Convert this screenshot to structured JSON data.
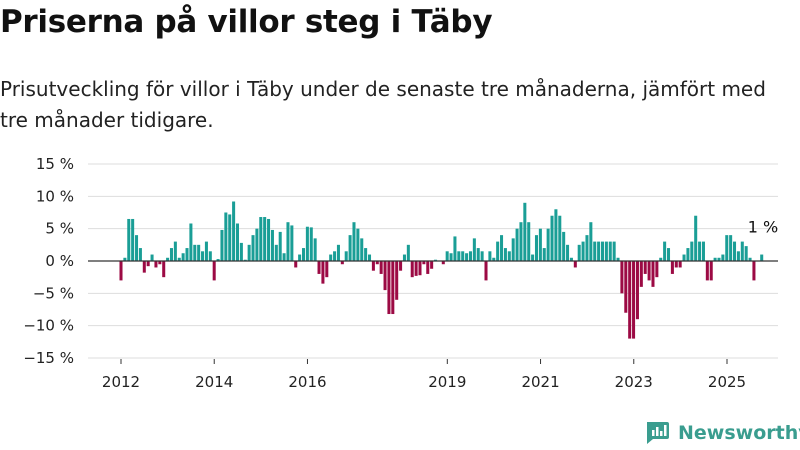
{
  "title": "Priserna på villor steg i Täby",
  "subtitle": "Prisutveckling för villor i Täby under de senaste tre månaderna, jämfört med tre månader tidigare.",
  "brand": "Newsworthy",
  "colors": {
    "positive": "#1a9e96",
    "negative": "#9c0a44",
    "grid": "#dddddd",
    "zero": "#333333",
    "brand": "#3a9d8f"
  },
  "chart_data": {
    "type": "bar",
    "ylabel": "",
    "xlabel": "",
    "ylim": [
      -15,
      15
    ],
    "yticks": [
      15,
      10,
      5,
      0,
      -5,
      -10,
      -15
    ],
    "ytick_labels": [
      "15 %",
      "10 %",
      "5 %",
      "0 %",
      "−5 %",
      "−10 %",
      "−15 %"
    ],
    "xticks": [
      "2012",
      "2014",
      "2016",
      "2019",
      "2021",
      "2023",
      "2025"
    ],
    "xtick_positions": [
      2012.0,
      2014.0,
      2016.0,
      2019.0,
      2021.0,
      2023.0,
      2025.0
    ],
    "x_start": 2012.0,
    "x_step": 0.0833,
    "values": [
      -3,
      0.5,
      6.5,
      6.5,
      4,
      2,
      -1.8,
      -0.8,
      1,
      -1,
      -0.5,
      -2.5,
      0.5,
      2,
      3,
      0.5,
      1.2,
      2,
      5.8,
      2.5,
      2.5,
      1.5,
      3,
      1.5,
      -3,
      0.3,
      4.8,
      7.5,
      7.2,
      9.2,
      5.8,
      2.8,
      0.2,
      2.5,
      4,
      5,
      6.8,
      6.8,
      6.5,
      4.8,
      2.5,
      4.5,
      1.2,
      6,
      5.5,
      -1,
      1,
      2,
      5.3,
      5.2,
      3.5,
      -2,
      -3.5,
      -2.5,
      1,
      1.5,
      2.5,
      -0.5,
      1.5,
      4,
      6,
      5,
      3.5,
      2,
      1,
      -1.5,
      -0.5,
      -2,
      -4.5,
      -8.2,
      -8.2,
      -6,
      -1.5,
      1,
      2.5,
      -2.5,
      -2.3,
      -2.2,
      -0.5,
      -2,
      -1.2,
      0.2,
      0,
      -0.5,
      1.5,
      1.2,
      3.8,
      1.5,
      1.5,
      1.2,
      1.5,
      3.5,
      2,
      1.5,
      -3,
      1.5,
      0.5,
      3,
      4,
      2,
      1.5,
      3.5,
      5,
      6,
      9,
      6,
      1,
      4,
      5,
      2,
      5,
      7,
      8,
      7,
      4.5,
      2.5,
      0.5,
      -1,
      2.5,
      3,
      4,
      6,
      3,
      3,
      3,
      3,
      3,
      3,
      0.5,
      -5,
      -8,
      -12,
      -12,
      -9,
      -4,
      -2,
      -3,
      -4,
      -2.5,
      0.5,
      3,
      2,
      -2,
      -1,
      -1,
      1,
      2,
      3,
      7,
      3,
      3,
      -3,
      -3,
      0.5,
      0.5,
      1,
      4,
      4,
      3,
      1.5,
      3,
      2.3,
      0.5,
      -3,
      0,
      1
    ]
  },
  "annotation": "1 %"
}
